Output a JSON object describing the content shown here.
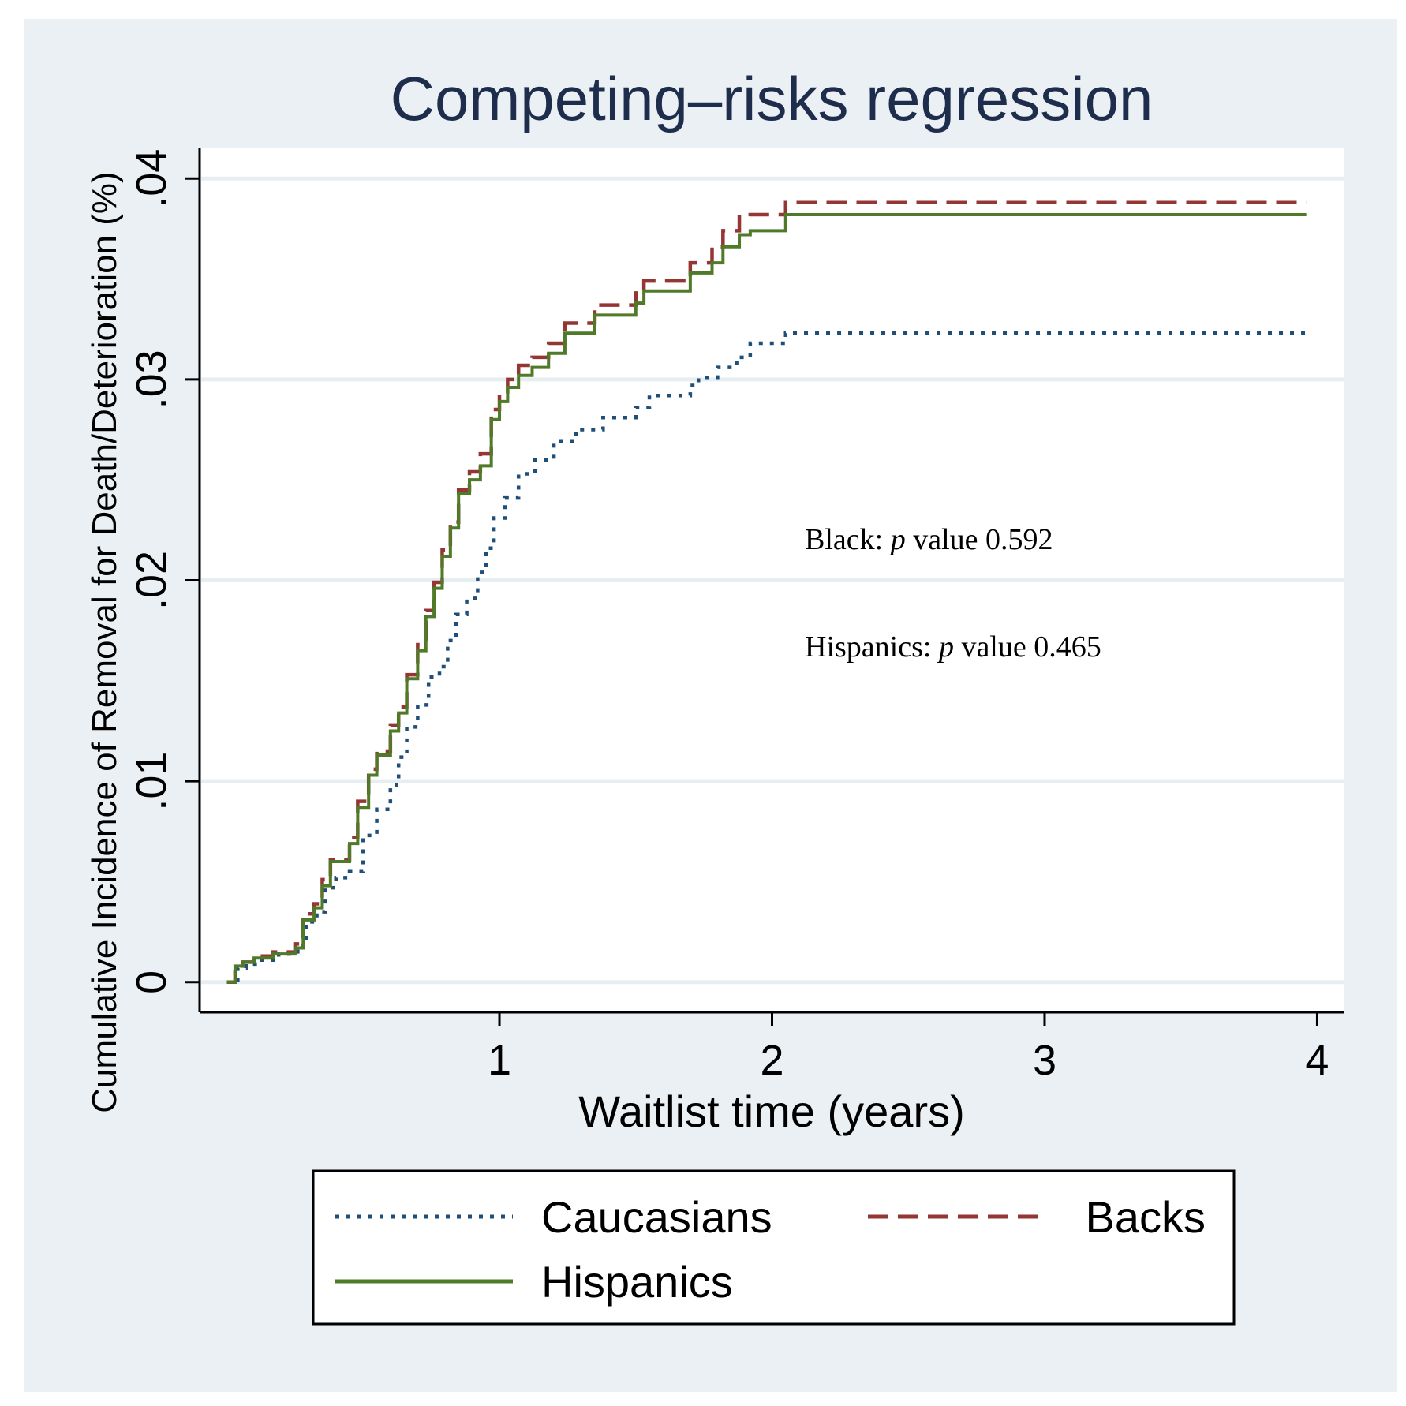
{
  "chart_data": {
    "type": "line",
    "title": "Competing–risks regression",
    "xlabel": "Waitlist time (years)",
    "ylabel": "Cumulative Incidence of Removal for Death/Deterioration (%)",
    "xlim": [
      -0.1,
      4.1
    ],
    "ylim": [
      -0.0015,
      0.0415
    ],
    "xticks": [
      1,
      2,
      3,
      4
    ],
    "xtick_labels": [
      "1",
      "2",
      "3",
      "4"
    ],
    "yticks": [
      0,
      0.01,
      0.02,
      0.03,
      0.04
    ],
    "ytick_labels": [
      "0",
      ".01",
      ".02",
      ".03",
      ".04"
    ],
    "grid": "horizontal",
    "legend_position": "bottom",
    "annotations": [
      {
        "prefix": "Black: ",
        "italic": "p",
        "suffix": " value 0.592"
      },
      {
        "prefix": "Hispanics: ",
        "italic": "p",
        "suffix": " value 0.465"
      }
    ],
    "series": [
      {
        "name": "Caucasians",
        "style": "dotted",
        "color": "#1f4e79",
        "step": true,
        "x": [
          0.0,
          0.04,
          0.07,
          0.12,
          0.19,
          0.26,
          0.29,
          0.33,
          0.36,
          0.4,
          0.45,
          0.5,
          0.55,
          0.6,
          0.63,
          0.66,
          0.7,
          0.74,
          0.78,
          0.81,
          0.84,
          0.88,
          0.92,
          0.95,
          0.98,
          1.02,
          1.07,
          1.13,
          1.2,
          1.28,
          1.38,
          1.5,
          1.55,
          1.7,
          1.73,
          1.8,
          1.87,
          1.92,
          2.05,
          3.96
        ],
        "y": [
          0.0,
          0.0007,
          0.0009,
          0.0011,
          0.0014,
          0.0018,
          0.003,
          0.0035,
          0.0047,
          0.0052,
          0.0055,
          0.0073,
          0.0086,
          0.0098,
          0.0112,
          0.0127,
          0.0138,
          0.0152,
          0.0157,
          0.017,
          0.0183,
          0.0191,
          0.0204,
          0.0216,
          0.0231,
          0.0241,
          0.0253,
          0.026,
          0.0269,
          0.0275,
          0.0281,
          0.0286,
          0.0292,
          0.0297,
          0.0301,
          0.0306,
          0.0311,
          0.0318,
          0.0323,
          0.0323
        ]
      },
      {
        "name": "Backs",
        "style": "dashed",
        "color": "#943634",
        "step": true,
        "x": [
          0.0,
          0.03,
          0.06,
          0.1,
          0.17,
          0.25,
          0.28,
          0.32,
          0.35,
          0.38,
          0.45,
          0.48,
          0.52,
          0.55,
          0.6,
          0.63,
          0.66,
          0.7,
          0.73,
          0.76,
          0.79,
          0.82,
          0.85,
          0.89,
          0.93,
          0.97,
          1.0,
          1.03,
          1.07,
          1.12,
          1.18,
          1.24,
          1.35,
          1.5,
          1.53,
          1.7,
          1.78,
          1.82,
          1.88,
          1.92,
          2.05,
          3.96
        ],
        "y": [
          0.0,
          0.0008,
          0.001,
          0.0013,
          0.0015,
          0.0019,
          0.0034,
          0.0039,
          0.0051,
          0.0061,
          0.0072,
          0.009,
          0.0106,
          0.0115,
          0.0128,
          0.0137,
          0.0153,
          0.0168,
          0.0185,
          0.0199,
          0.0215,
          0.0229,
          0.0245,
          0.0254,
          0.0263,
          0.0285,
          0.0293,
          0.03,
          0.0307,
          0.0311,
          0.0318,
          0.0328,
          0.0337,
          0.0343,
          0.0349,
          0.0358,
          0.0366,
          0.0374,
          0.0381,
          0.0382,
          0.0388,
          0.0388
        ]
      },
      {
        "name": "Hispanics",
        "style": "solid",
        "color": "#4f7a28",
        "step": true,
        "x": [
          0.0,
          0.03,
          0.06,
          0.1,
          0.17,
          0.25,
          0.28,
          0.32,
          0.35,
          0.38,
          0.45,
          0.48,
          0.52,
          0.55,
          0.6,
          0.63,
          0.66,
          0.7,
          0.73,
          0.76,
          0.79,
          0.82,
          0.85,
          0.89,
          0.93,
          0.97,
          1.0,
          1.03,
          1.07,
          1.12,
          1.18,
          1.24,
          1.35,
          1.5,
          1.53,
          1.7,
          1.78,
          1.82,
          1.88,
          1.92,
          2.05,
          3.96
        ],
        "y": [
          0.0,
          0.0008,
          0.001,
          0.0012,
          0.0014,
          0.0017,
          0.0031,
          0.0037,
          0.0048,
          0.006,
          0.0069,
          0.0087,
          0.0103,
          0.0113,
          0.0125,
          0.0134,
          0.0151,
          0.0165,
          0.0182,
          0.0196,
          0.0212,
          0.0226,
          0.0243,
          0.025,
          0.0257,
          0.028,
          0.0289,
          0.0296,
          0.0302,
          0.0306,
          0.0313,
          0.0323,
          0.0332,
          0.0338,
          0.0344,
          0.0353,
          0.0358,
          0.0366,
          0.0372,
          0.0374,
          0.0382,
          0.0382
        ]
      }
    ]
  },
  "colors": {
    "outer_background": "#eaf0f3",
    "plot_background": "#ffffff",
    "grid": "#e6eef2",
    "axis": "#000000",
    "title": "#1f2d4d"
  }
}
